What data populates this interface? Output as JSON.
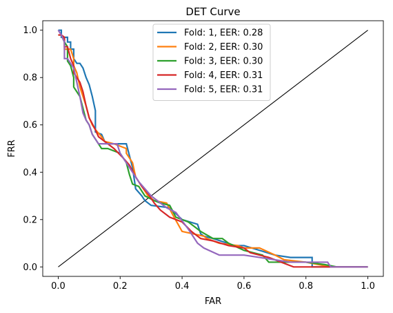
{
  "chart_data": {
    "type": "line",
    "title": "DET Curve",
    "xlabel": "FAR",
    "ylabel": "FRR",
    "xlim": [
      -0.05,
      1.05
    ],
    "ylim": [
      -0.04,
      1.04
    ],
    "xticks": [
      0.0,
      0.2,
      0.4,
      0.6,
      0.8,
      1.0
    ],
    "xtick_labels": [
      "0.0",
      "0.2",
      "0.4",
      "0.6",
      "0.8",
      "1.0"
    ],
    "yticks": [
      0.0,
      0.2,
      0.4,
      0.6,
      0.8,
      1.0
    ],
    "ytick_labels": [
      "0.0",
      "0.2",
      "0.4",
      "0.6",
      "0.8",
      "1.0"
    ],
    "grid": false,
    "legend_position": "top-center",
    "reference_line": {
      "x": [
        0,
        1
      ],
      "y": [
        0,
        1
      ],
      "color": "#000000"
    },
    "series": [
      {
        "name": "Fold: 1, EER: 0.28",
        "color": "#1f77b4",
        "x": [
          0.0,
          0.01,
          0.01,
          0.03,
          0.03,
          0.04,
          0.04,
          0.05,
          0.05,
          0.06,
          0.07,
          0.08,
          0.09,
          0.1,
          0.11,
          0.12,
          0.12,
          0.14,
          0.15,
          0.17,
          0.22,
          0.24,
          0.25,
          0.27,
          0.28,
          0.3,
          0.36,
          0.4,
          0.45,
          0.46,
          0.47,
          0.5,
          0.57,
          0.6,
          0.7,
          0.75,
          0.78,
          0.82,
          0.82,
          0.88,
          1.0
        ],
        "y": [
          1.0,
          1.0,
          0.97,
          0.97,
          0.95,
          0.95,
          0.92,
          0.92,
          0.88,
          0.86,
          0.86,
          0.84,
          0.8,
          0.77,
          0.72,
          0.66,
          0.57,
          0.56,
          0.53,
          0.52,
          0.52,
          0.42,
          0.33,
          0.3,
          0.28,
          0.26,
          0.25,
          0.2,
          0.18,
          0.14,
          0.13,
          0.12,
          0.09,
          0.09,
          0.05,
          0.04,
          0.04,
          0.04,
          0.0,
          0.0,
          0.0
        ]
      },
      {
        "name": "Fold: 2, EER: 0.30",
        "color": "#ff7f0e",
        "x": [
          0.0,
          0.01,
          0.02,
          0.02,
          0.04,
          0.05,
          0.05,
          0.06,
          0.07,
          0.08,
          0.09,
          0.1,
          0.11,
          0.12,
          0.14,
          0.15,
          0.18,
          0.22,
          0.22,
          0.24,
          0.25,
          0.27,
          0.29,
          0.31,
          0.35,
          0.37,
          0.4,
          0.47,
          0.48,
          0.52,
          0.58,
          0.6,
          0.65,
          0.7,
          0.73,
          0.8,
          0.88,
          1.0
        ],
        "y": [
          0.98,
          0.98,
          0.95,
          0.92,
          0.92,
          0.88,
          0.85,
          0.82,
          0.76,
          0.72,
          0.68,
          0.63,
          0.6,
          0.58,
          0.55,
          0.53,
          0.52,
          0.5,
          0.48,
          0.44,
          0.38,
          0.34,
          0.3,
          0.28,
          0.27,
          0.22,
          0.15,
          0.13,
          0.12,
          0.1,
          0.09,
          0.08,
          0.08,
          0.05,
          0.03,
          0.02,
          0.0,
          0.0
        ]
      },
      {
        "name": "Fold: 3, EER: 0.30",
        "color": "#2ca02c",
        "x": [
          0.0,
          0.01,
          0.02,
          0.03,
          0.03,
          0.04,
          0.05,
          0.05,
          0.07,
          0.08,
          0.09,
          0.1,
          0.11,
          0.13,
          0.14,
          0.16,
          0.2,
          0.22,
          0.23,
          0.24,
          0.26,
          0.28,
          0.31,
          0.33,
          0.36,
          0.38,
          0.42,
          0.44,
          0.46,
          0.5,
          0.53,
          0.55,
          0.6,
          0.66,
          0.68,
          0.72,
          0.8,
          0.86,
          0.9,
          1.0
        ],
        "y": [
          0.98,
          0.98,
          0.95,
          0.93,
          0.87,
          0.85,
          0.8,
          0.76,
          0.72,
          0.67,
          0.62,
          0.6,
          0.56,
          0.52,
          0.5,
          0.5,
          0.48,
          0.44,
          0.39,
          0.35,
          0.34,
          0.3,
          0.28,
          0.27,
          0.26,
          0.21,
          0.19,
          0.17,
          0.15,
          0.12,
          0.12,
          0.1,
          0.07,
          0.05,
          0.02,
          0.02,
          0.02,
          0.01,
          0.0,
          0.0
        ]
      },
      {
        "name": "Fold: 4, EER: 0.31",
        "color": "#d62728",
        "x": [
          0.0,
          0.01,
          0.02,
          0.02,
          0.03,
          0.04,
          0.05,
          0.05,
          0.06,
          0.07,
          0.08,
          0.09,
          0.1,
          0.12,
          0.13,
          0.15,
          0.18,
          0.21,
          0.23,
          0.25,
          0.27,
          0.29,
          0.31,
          0.33,
          0.36,
          0.4,
          0.43,
          0.46,
          0.5,
          0.55,
          0.6,
          0.62,
          0.68,
          0.72,
          0.76,
          0.8,
          0.88,
          1.0
        ],
        "y": [
          0.98,
          0.98,
          0.97,
          0.93,
          0.93,
          0.88,
          0.85,
          0.82,
          0.8,
          0.78,
          0.74,
          0.68,
          0.63,
          0.58,
          0.55,
          0.53,
          0.5,
          0.46,
          0.43,
          0.38,
          0.34,
          0.31,
          0.27,
          0.24,
          0.21,
          0.19,
          0.15,
          0.12,
          0.11,
          0.09,
          0.08,
          0.06,
          0.04,
          0.02,
          0.0,
          0.0,
          0.0,
          0.0
        ]
      },
      {
        "name": "Fold: 5, EER: 0.31",
        "color": "#9467bd",
        "x": [
          0.0,
          0.01,
          0.02,
          0.02,
          0.03,
          0.04,
          0.05,
          0.06,
          0.07,
          0.08,
          0.09,
          0.1,
          0.11,
          0.13,
          0.15,
          0.19,
          0.2,
          0.22,
          0.24,
          0.26,
          0.28,
          0.3,
          0.32,
          0.35,
          0.38,
          0.42,
          0.45,
          0.47,
          0.52,
          0.6,
          0.65,
          0.7,
          0.75,
          0.8,
          0.87,
          0.88,
          1.0
        ],
        "y": [
          1.0,
          0.98,
          0.95,
          0.88,
          0.88,
          0.86,
          0.84,
          0.78,
          0.72,
          0.65,
          0.62,
          0.6,
          0.56,
          0.52,
          0.52,
          0.52,
          0.48,
          0.44,
          0.4,
          0.36,
          0.33,
          0.3,
          0.28,
          0.25,
          0.23,
          0.16,
          0.1,
          0.08,
          0.05,
          0.05,
          0.04,
          0.03,
          0.02,
          0.02,
          0.02,
          0.0,
          0.0
        ]
      }
    ]
  }
}
